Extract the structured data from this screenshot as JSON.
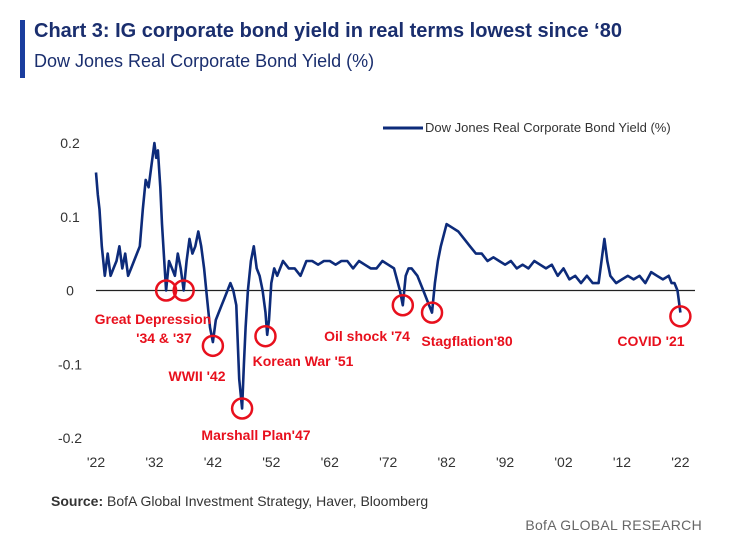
{
  "header": {
    "title": "Chart 3: IG corporate bond yield in real terms lowest since ‘80",
    "subtitle": "Dow Jones Real Corporate Bond Yield (%)"
  },
  "footer": {
    "source_label": "Source:",
    "source_text": "BofA Global Investment Strategy, Haver, Bloomberg",
    "brand": "BofA GLOBAL RESEARCH"
  },
  "colors": {
    "series": "#0d2b7a",
    "annotation": "#e8101d",
    "title": "#1a2e6e"
  },
  "chart_data": {
    "type": "line",
    "title": "Chart 3: IG corporate bond yield in real terms lowest since ‘80",
    "subtitle": "Dow Jones Real Corporate Bond Yield (%)",
    "xlabel": "",
    "ylabel": "",
    "xlim": [
      1922,
      2024.5
    ],
    "ylim": [
      -0.2,
      0.2
    ],
    "grid": false,
    "legend": "top-right",
    "x_ticks": [
      1922,
      1932,
      1942,
      1952,
      1962,
      1972,
      1982,
      1992,
      2002,
      2012,
      2022
    ],
    "x_tick_labels": [
      "'22",
      "'32",
      "'42",
      "'52",
      "'62",
      "'72",
      "'82",
      "'92",
      "'02",
      "'12",
      "'22"
    ],
    "y_ticks": [
      0.2,
      0.1,
      0,
      -0.1,
      -0.2
    ],
    "y_tick_labels": [
      "0.2",
      "0.1",
      "0",
      "-0.1",
      "-0.2"
    ],
    "series": [
      {
        "name": "Dow Jones Real Corporate Bond Yield (%)",
        "x": [
          1922,
          1922.3,
          1922.6,
          1923.0,
          1923.5,
          1924.0,
          1924.5,
          1925.0,
          1925.5,
          1926.0,
          1926.5,
          1927.0,
          1927.5,
          1928.0,
          1928.5,
          1929.0,
          1929.5,
          1930.0,
          1930.5,
          1931.0,
          1931.5,
          1932.0,
          1932.3,
          1932.6,
          1933.0,
          1933.3,
          1933.6,
          1934.0,
          1934.5,
          1935.0,
          1935.5,
          1936.0,
          1936.5,
          1937.0,
          1937.5,
          1938.0,
          1938.5,
          1939.0,
          1939.5,
          1940.0,
          1940.5,
          1941.0,
          1941.5,
          1942.0,
          1942.5,
          1943.0,
          1943.5,
          1944.0,
          1944.5,
          1945.0,
          1945.5,
          1946.0,
          1946.5,
          1947.0,
          1947.3,
          1947.6,
          1948.0,
          1948.5,
          1949.0,
          1949.5,
          1950.0,
          1950.5,
          1951.0,
          1951.3,
          1951.6,
          1952.0,
          1952.5,
          1953.0,
          1954.0,
          1955.0,
          1956.0,
          1957.0,
          1958.0,
          1959.0,
          1960.0,
          1961.0,
          1962.0,
          1963.0,
          1964.0,
          1965.0,
          1966.0,
          1967.0,
          1968.0,
          1969.0,
          1970.0,
          1971.0,
          1972.0,
          1973.0,
          1974.0,
          1974.5,
          1975.0,
          1975.5,
          1976.0,
          1977.0,
          1978.0,
          1978.5,
          1979.0,
          1979.5,
          1980.0,
          1980.5,
          1981.0,
          1982.0,
          1983.0,
          1984.0,
          1985.0,
          1986.0,
          1987.0,
          1988.0,
          1989.0,
          1990.0,
          1991.0,
          1992.0,
          1993.0,
          1994.0,
          1995.0,
          1996.0,
          1997.0,
          1998.0,
          1999.0,
          2000.0,
          2001.0,
          2002.0,
          2003.0,
          2004.0,
          2005.0,
          2006.0,
          2007.0,
          2008.0,
          2009.0,
          2009.5,
          2010.0,
          2011.0,
          2012.0,
          2013.0,
          2014.0,
          2015.0,
          2016.0,
          2017.0,
          2018.0,
          2019.0,
          2020.0,
          2020.5,
          2021.0,
          2021.5,
          2022.0
        ],
        "values": [
          0.16,
          0.13,
          0.11,
          0.06,
          0.02,
          0.05,
          0.02,
          0.03,
          0.04,
          0.06,
          0.03,
          0.05,
          0.02,
          0.03,
          0.04,
          0.05,
          0.06,
          0.11,
          0.15,
          0.14,
          0.17,
          0.2,
          0.18,
          0.19,
          0.14,
          0.09,
          0.05,
          0.0,
          0.04,
          0.03,
          0.02,
          0.05,
          0.03,
          0.0,
          0.04,
          0.07,
          0.05,
          0.06,
          0.08,
          0.06,
          0.03,
          -0.01,
          -0.05,
          -0.07,
          -0.04,
          -0.03,
          -0.02,
          -0.01,
          0.0,
          0.01,
          0.0,
          -0.02,
          -0.12,
          -0.16,
          -0.1,
          -0.05,
          0.0,
          0.04,
          0.06,
          0.03,
          0.02,
          0.0,
          -0.03,
          -0.06,
          -0.04,
          0.01,
          0.03,
          0.02,
          0.04,
          0.03,
          0.03,
          0.02,
          0.04,
          0.04,
          0.035,
          0.04,
          0.04,
          0.035,
          0.04,
          0.04,
          0.03,
          0.04,
          0.035,
          0.03,
          0.03,
          0.04,
          0.035,
          0.03,
          0.0,
          -0.02,
          0.02,
          0.03,
          0.03,
          0.02,
          0.0,
          -0.01,
          -0.02,
          -0.03,
          0.01,
          0.04,
          0.06,
          0.09,
          0.085,
          0.08,
          0.07,
          0.06,
          0.05,
          0.05,
          0.04,
          0.045,
          0.04,
          0.035,
          0.04,
          0.03,
          0.035,
          0.03,
          0.04,
          0.035,
          0.03,
          0.035,
          0.02,
          0.03,
          0.015,
          0.02,
          0.01,
          0.02,
          0.01,
          0.01,
          0.07,
          0.04,
          0.02,
          0.01,
          0.015,
          0.02,
          0.015,
          0.02,
          0.01,
          0.025,
          0.02,
          0.015,
          0.02,
          0.01,
          0.01,
          0.0,
          -0.03
        ]
      }
    ],
    "annotations": [
      {
        "label": "Great Depression",
        "x": 1934,
        "y": 0.0
      },
      {
        "label": "'34 & '37",
        "x": 1937,
        "y": 0.0
      },
      {
        "label": "WWII '42",
        "x": 1942,
        "y": -0.075
      },
      {
        "label": "Marshall Plan'47",
        "x": 1947,
        "y": -0.16
      },
      {
        "label": "Korean War '51",
        "x": 1951,
        "y": -0.062
      },
      {
        "label": "Oil shock '74",
        "x": 1974.5,
        "y": -0.02
      },
      {
        "label": "Stagflation'80",
        "x": 1979.5,
        "y": -0.03
      },
      {
        "label": "COVID '21",
        "x": 2022,
        "y": -0.035
      }
    ]
  }
}
